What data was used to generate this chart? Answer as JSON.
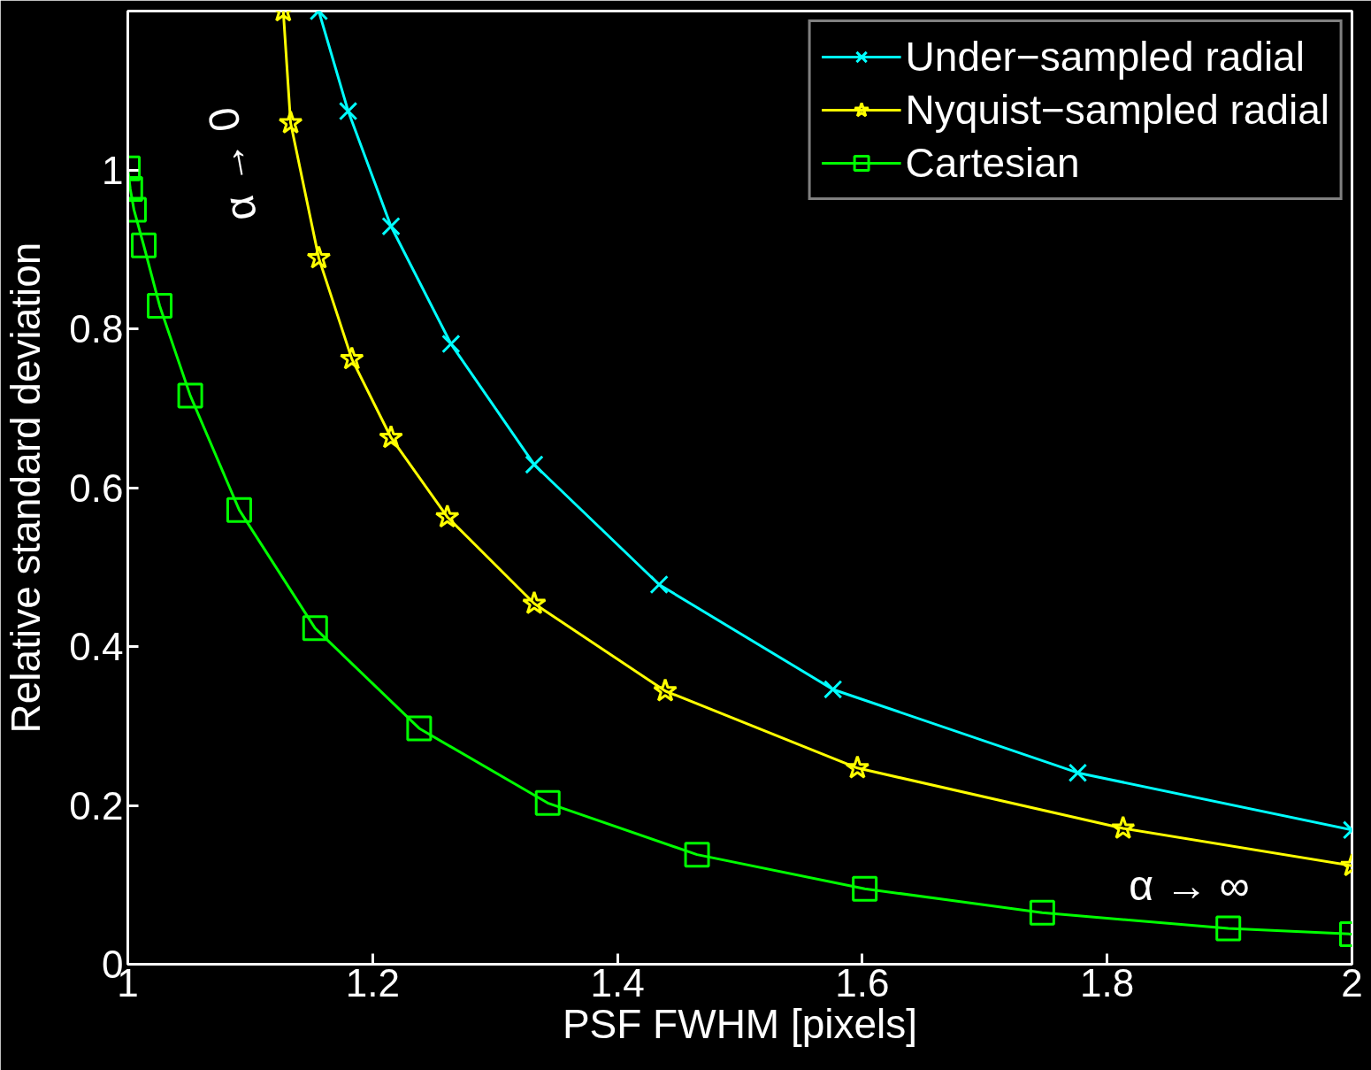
{
  "chart_data": {
    "type": "line",
    "xlabel": "PSF FWHM [pixels]",
    "ylabel": "Relative standard deviation",
    "xlim": [
      1,
      2
    ],
    "ylim": [
      0,
      1.2
    ],
    "xticks": [
      1,
      1.2,
      1.4,
      1.6,
      1.8,
      2
    ],
    "yticks": [
      0,
      0.2,
      0.4,
      0.6,
      0.8,
      1
    ],
    "grid": false,
    "legend": "top right",
    "line_style": "solid",
    "series": [
      {
        "name": "Under−sampled radial",
        "color": "#00ffff",
        "marker": "cross",
        "x": [
          1.156,
          1.18,
          1.215,
          1.264,
          1.332,
          1.434,
          1.576,
          1.776,
          2.0
        ],
        "values": [
          1.2,
          1.074,
          0.929,
          0.781,
          0.629,
          0.478,
          0.346,
          0.241,
          0.169
        ]
      },
      {
        "name": "Nyquist−sampled radial",
        "color": "#ffff00",
        "marker": "star",
        "x": [
          1.127,
          1.133,
          1.156,
          1.183,
          1.215,
          1.261,
          1.332,
          1.439,
          1.596,
          1.813,
          2.0
        ],
        "values": [
          1.2,
          1.059,
          0.889,
          0.762,
          0.663,
          0.563,
          0.454,
          0.344,
          0.247,
          0.171,
          0.124
        ]
      },
      {
        "name": "Cartesian",
        "color": "#00ff00",
        "marker": "square",
        "x": [
          1.0,
          1.002,
          1.005,
          1.013,
          1.026,
          1.051,
          1.091,
          1.153,
          1.238,
          1.343,
          1.465,
          1.602,
          1.747,
          1.899,
          2.0
        ],
        "values": [
          1.002,
          0.976,
          0.95,
          0.905,
          0.829,
          0.716,
          0.572,
          0.423,
          0.297,
          0.203,
          0.138,
          0.095,
          0.065,
          0.045,
          0.038
        ]
      }
    ],
    "annotations": [
      "α → 0",
      "α → ∞"
    ]
  }
}
